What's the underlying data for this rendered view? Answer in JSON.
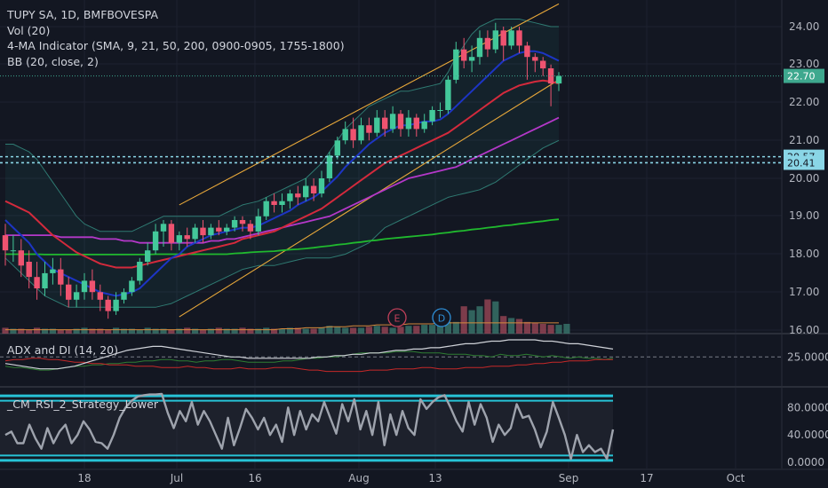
{
  "header": {
    "title": "TUPY SA, 1D, BMFBOVESPA",
    "lines": [
      "Vol (20)",
      "4-MA Indicator (SMA, 9, 21, 50, 200, 0900-0905, 1755-1800)",
      "BB (20, close, 2)"
    ]
  },
  "chart_data": [
    {
      "type": "candlestick",
      "y_ticks": [
        "24.00",
        "23.00",
        "22.00",
        "21.00",
        "20.00",
        "19.00",
        "18.00",
        "17.00",
        "16.00"
      ],
      "x_ticks": [
        "18",
        "Jul",
        "16",
        "Aug",
        "13",
        "Sep",
        "17",
        "Oct"
      ],
      "ylim": [
        15.98,
        24.6
      ],
      "last_price": "22.70",
      "levels": [
        "20.57",
        "20.41"
      ],
      "events": [
        "E",
        "D"
      ],
      "candles": [
        [
          18.5,
          18.1,
          18.8,
          17.7
        ],
        [
          18.1,
          18.1,
          18.5,
          17.8
        ],
        [
          18.1,
          17.7,
          18.4,
          17.4
        ],
        [
          17.8,
          17.4,
          18.1,
          17.1
        ],
        [
          17.4,
          17.1,
          17.8,
          16.8
        ],
        [
          17.1,
          17.5,
          17.8,
          16.9
        ],
        [
          17.5,
          17.6,
          17.9,
          17.2
        ],
        [
          17.6,
          17.2,
          17.9,
          16.9
        ],
        [
          17.2,
          16.8,
          17.4,
          16.6
        ],
        [
          16.8,
          17.0,
          17.2,
          16.6
        ],
        [
          17.0,
          17.3,
          17.5,
          16.8
        ],
        [
          17.3,
          17.0,
          17.6,
          16.8
        ],
        [
          17.0,
          16.8,
          17.2,
          16.5
        ],
        [
          16.8,
          16.5,
          16.9,
          16.3
        ],
        [
          16.5,
          16.8,
          17.0,
          16.4
        ],
        [
          16.8,
          17.0,
          17.1,
          16.7
        ],
        [
          17.0,
          17.3,
          17.4,
          16.9
        ],
        [
          17.3,
          17.8,
          17.9,
          17.2
        ],
        [
          17.8,
          18.1,
          18.3,
          17.7
        ],
        [
          18.1,
          18.6,
          18.8,
          18.0
        ],
        [
          18.6,
          18.8,
          18.9,
          18.2
        ],
        [
          18.8,
          18.3,
          18.9,
          18.1
        ],
        [
          18.3,
          18.5,
          18.6,
          18.1
        ],
        [
          18.5,
          18.4,
          18.7,
          18.2
        ],
        [
          18.4,
          18.7,
          18.8,
          18.3
        ],
        [
          18.7,
          18.5,
          18.9,
          18.3
        ],
        [
          18.5,
          18.7,
          18.8,
          18.4
        ],
        [
          18.7,
          18.6,
          18.9,
          18.5
        ],
        [
          18.6,
          18.7,
          18.8,
          18.5
        ],
        [
          18.7,
          18.9,
          19.0,
          18.6
        ],
        [
          18.9,
          18.8,
          19.0,
          18.6
        ],
        [
          18.8,
          18.6,
          18.9,
          18.4
        ],
        [
          18.6,
          19.0,
          19.2,
          18.5
        ],
        [
          19.0,
          19.4,
          19.5,
          18.9
        ],
        [
          19.4,
          19.3,
          19.6,
          19.1
        ],
        [
          19.3,
          19.4,
          19.6,
          19.1
        ],
        [
          19.4,
          19.6,
          19.7,
          19.2
        ],
        [
          19.6,
          19.5,
          19.8,
          19.3
        ],
        [
          19.5,
          19.8,
          20.0,
          19.4
        ],
        [
          19.8,
          19.6,
          20.0,
          19.4
        ],
        [
          19.6,
          20.0,
          20.2,
          19.5
        ],
        [
          20.0,
          20.6,
          20.7,
          19.9
        ],
        [
          20.6,
          21.0,
          21.1,
          20.5
        ],
        [
          21.0,
          21.3,
          21.5,
          20.9
        ],
        [
          21.3,
          21.0,
          21.6,
          20.8
        ],
        [
          21.0,
          21.4,
          21.6,
          20.9
        ],
        [
          21.4,
          21.2,
          21.6,
          21.0
        ],
        [
          21.2,
          21.6,
          21.8,
          21.1
        ],
        [
          21.6,
          21.3,
          21.8,
          21.1
        ],
        [
          21.3,
          21.7,
          21.9,
          21.2
        ],
        [
          21.7,
          21.3,
          21.8,
          21.1
        ],
        [
          21.3,
          21.6,
          21.8,
          21.1
        ],
        [
          21.6,
          21.3,
          21.7,
          21.1
        ],
        [
          21.3,
          21.5,
          21.7,
          21.2
        ],
        [
          21.5,
          21.8,
          21.9,
          21.4
        ],
        [
          21.8,
          21.8,
          22.0,
          21.6
        ],
        [
          21.8,
          22.6,
          22.7,
          21.7
        ],
        [
          22.6,
          23.4,
          23.6,
          22.5
        ],
        [
          23.4,
          23.1,
          23.7,
          22.9
        ],
        [
          23.1,
          23.2,
          23.5,
          22.8
        ],
        [
          23.2,
          23.7,
          23.9,
          23.0
        ],
        [
          23.7,
          23.4,
          23.9,
          23.2
        ],
        [
          23.4,
          23.9,
          24.1,
          23.3
        ],
        [
          23.9,
          23.5,
          24.0,
          23.1
        ],
        [
          23.5,
          23.9,
          24.0,
          23.4
        ],
        [
          23.9,
          23.5,
          24.0,
          23.3
        ],
        [
          23.5,
          23.2,
          23.6,
          22.6
        ],
        [
          23.2,
          23.1,
          23.3,
          22.8
        ],
        [
          23.1,
          22.9,
          23.2,
          22.7
        ],
        [
          22.9,
          22.5,
          23.0,
          21.9
        ],
        [
          22.5,
          22.7,
          22.8,
          22.3
        ]
      ],
      "sma9": [
        18.9,
        18.7,
        18.5,
        18.3,
        18.0,
        17.8,
        17.6,
        17.5,
        17.4,
        17.3,
        17.2,
        17.1,
        17.0,
        16.95,
        16.9,
        16.95,
        17.0,
        17.1,
        17.3,
        17.5,
        17.7,
        17.9,
        18.0,
        18.2,
        18.3,
        18.4,
        18.5,
        18.55,
        18.6,
        18.65,
        18.7,
        18.7,
        18.75,
        18.85,
        18.95,
        19.05,
        19.15,
        19.3,
        19.4,
        19.5,
        19.65,
        19.85,
        20.05,
        20.3,
        20.5,
        20.7,
        20.9,
        21.05,
        21.2,
        21.3,
        21.4,
        21.4,
        21.45,
        21.5,
        21.5,
        21.55,
        21.7,
        21.9,
        22.1,
        22.3,
        22.5,
        22.7,
        22.9,
        23.1,
        23.2,
        23.3,
        23.35,
        23.35,
        23.3,
        23.2,
        23.1
      ],
      "sma21": [
        19.4,
        19.3,
        19.2,
        19.1,
        18.9,
        18.7,
        18.5,
        18.35,
        18.2,
        18.05,
        17.95,
        17.85,
        17.75,
        17.7,
        17.65,
        17.65,
        17.65,
        17.7,
        17.75,
        17.8,
        17.85,
        17.9,
        17.95,
        18.0,
        18.05,
        18.1,
        18.15,
        18.2,
        18.25,
        18.3,
        18.4,
        18.45,
        18.5,
        18.55,
        18.6,
        18.7,
        18.8,
        18.9,
        19.0,
        19.1,
        19.2,
        19.35,
        19.5,
        19.65,
        19.8,
        19.95,
        20.1,
        20.25,
        20.4,
        20.5,
        20.6,
        20.7,
        20.8,
        20.9,
        21.0,
        21.1,
        21.2,
        21.35,
        21.5,
        21.65,
        21.8,
        21.95,
        22.1,
        22.25,
        22.35,
        22.45,
        22.5,
        22.55,
        22.58,
        22.55,
        22.5
      ],
      "sma50": [
        18.5,
        18.5,
        18.5,
        18.5,
        18.5,
        18.5,
        18.5,
        18.45,
        18.45,
        18.45,
        18.45,
        18.45,
        18.4,
        18.4,
        18.4,
        18.35,
        18.35,
        18.3,
        18.3,
        18.3,
        18.3,
        18.3,
        18.3,
        18.3,
        18.3,
        18.3,
        18.35,
        18.35,
        18.4,
        18.4,
        18.45,
        18.5,
        18.55,
        18.6,
        18.65,
        18.7,
        18.75,
        18.8,
        18.85,
        18.9,
        18.95,
        19.0,
        19.1,
        19.2,
        19.3,
        19.4,
        19.5,
        19.6,
        19.7,
        19.8,
        19.9,
        20.0,
        20.05,
        20.1,
        20.15,
        20.2,
        20.25,
        20.3,
        20.4,
        20.5,
        20.6,
        20.7,
        20.8,
        20.9,
        21.0,
        21.1,
        21.2,
        21.3,
        21.4,
        21.5,
        21.6
      ],
      "sma200": [
        18.0,
        18.0,
        18.0,
        18.0,
        18.0,
        17.99,
        17.99,
        17.99,
        17.99,
        17.99,
        17.99,
        17.99,
        17.99,
        17.99,
        17.99,
        17.99,
        17.99,
        17.99,
        17.99,
        18.0,
        18.0,
        18.0,
        18.0,
        18.0,
        18.0,
        18.0,
        18.0,
        18.0,
        18.0,
        18.02,
        18.03,
        18.05,
        18.06,
        18.07,
        18.08,
        18.1,
        18.12,
        18.13,
        18.15,
        18.17,
        18.2,
        18.22,
        18.25,
        18.27,
        18.3,
        18.32,
        18.35,
        18.37,
        18.4,
        18.42,
        18.44,
        18.46,
        18.48,
        18.5,
        18.52,
        18.55,
        18.57,
        18.6,
        18.62,
        18.65,
        18.67,
        18.7,
        18.72,
        18.75,
        18.77,
        18.8,
        18.82,
        18.85,
        18.87,
        18.9,
        18.92
      ],
      "bb_upper": [
        20.9,
        20.9,
        20.8,
        20.7,
        20.5,
        20.2,
        19.9,
        19.6,
        19.3,
        19.0,
        18.8,
        18.7,
        18.6,
        18.6,
        18.6,
        18.6,
        18.6,
        18.7,
        18.8,
        18.9,
        19.0,
        19.0,
        19.0,
        19.0,
        19.0,
        19.0,
        19.0,
        19.0,
        19.1,
        19.2,
        19.3,
        19.35,
        19.4,
        19.5,
        19.6,
        19.7,
        19.8,
        19.9,
        20.0,
        20.2,
        20.4,
        20.7,
        21.0,
        21.3,
        21.5,
        21.7,
        21.9,
        22.0,
        22.1,
        22.2,
        22.3,
        22.3,
        22.35,
        22.4,
        22.45,
        22.5,
        22.8,
        23.2,
        23.5,
        23.8,
        24.0,
        24.1,
        24.2,
        24.2,
        24.2,
        24.2,
        24.15,
        24.1,
        24.05,
        24.0,
        24.0
      ],
      "bb_lower": [
        17.9,
        17.7,
        17.5,
        17.3,
        17.1,
        16.9,
        16.8,
        16.7,
        16.6,
        16.6,
        16.6,
        16.6,
        16.6,
        16.6,
        16.6,
        16.6,
        16.6,
        16.6,
        16.6,
        16.6,
        16.65,
        16.7,
        16.8,
        16.9,
        17.0,
        17.1,
        17.2,
        17.3,
        17.4,
        17.5,
        17.6,
        17.65,
        17.7,
        17.7,
        17.7,
        17.75,
        17.8,
        17.85,
        17.9,
        17.9,
        17.9,
        17.9,
        17.95,
        18.0,
        18.1,
        18.2,
        18.3,
        18.5,
        18.7,
        18.8,
        18.9,
        19.0,
        19.1,
        19.2,
        19.3,
        19.4,
        19.5,
        19.55,
        19.6,
        19.65,
        19.7,
        19.8,
        19.9,
        20.05,
        20.2,
        20.35,
        20.5,
        20.65,
        20.8,
        20.9,
        21.0
      ],
      "channel": {
        "upper": [
          [
            22,
            19.3
          ],
          [
            70,
            24.6
          ]
        ],
        "lower": [
          [
            22,
            16.35
          ],
          [
            70,
            22.6
          ]
        ]
      }
    },
    {
      "type": "bar",
      "title": "Vol (20)",
      "values": [
        0.06,
        0.05,
        0.05,
        0.04,
        0.06,
        0.05,
        0.05,
        0.04,
        0.04,
        0.05,
        0.06,
        0.05,
        0.05,
        0.04,
        0.06,
        0.05,
        0.05,
        0.04,
        0.06,
        0.05,
        0.05,
        0.04,
        0.05,
        0.06,
        0.05,
        0.04,
        0.05,
        0.06,
        0.05,
        0.05,
        0.06,
        0.05,
        0.05,
        0.06,
        0.05,
        0.05,
        0.06,
        0.06,
        0.05,
        0.05,
        0.06,
        0.08,
        0.07,
        0.06,
        0.06,
        0.06,
        0.07,
        0.08,
        0.07,
        0.06,
        0.07,
        0.08,
        0.08,
        0.09,
        0.09,
        0.11,
        0.12,
        0.12,
        0.28,
        0.24,
        0.28,
        0.35,
        0.33,
        0.18,
        0.16,
        0.15,
        0.12,
        0.11,
        0.1,
        0.09,
        0.09,
        0.1
      ],
      "ma": [
        0.04,
        0.04,
        0.04,
        0.04,
        0.04,
        0.04,
        0.04,
        0.04,
        0.04,
        0.04,
        0.04,
        0.04,
        0.04,
        0.04,
        0.04,
        0.04,
        0.04,
        0.04,
        0.04,
        0.04,
        0.04,
        0.04,
        0.04,
        0.04,
        0.04,
        0.04,
        0.04,
        0.04,
        0.04,
        0.04,
        0.04,
        0.04,
        0.04,
        0.04,
        0.04,
        0.05,
        0.05,
        0.05,
        0.06,
        0.06,
        0.06,
        0.07,
        0.07,
        0.07,
        0.08,
        0.08,
        0.08,
        0.09,
        0.09,
        0.09,
        0.09,
        0.1,
        0.1,
        0.1,
        0.1,
        0.11,
        0.11,
        0.11,
        0.11,
        0.11,
        0.11,
        0.11,
        0.11,
        0.11,
        0.11,
        0.11,
        0.11,
        0.11,
        0.11,
        0.11,
        0.11
      ]
    },
    {
      "type": "line",
      "title": "ADX and DI (14, 20)",
      "y_ticks": [
        "25.0000"
      ],
      "ylim": [
        5,
        40
      ],
      "adx": [
        20,
        19,
        18,
        17,
        16,
        16,
        16,
        17,
        18,
        20,
        22,
        24,
        26,
        28,
        30,
        31,
        32,
        33,
        33,
        32,
        31,
        30,
        29,
        28,
        27,
        26,
        25,
        25,
        24,
        24,
        24,
        24,
        24,
        24,
        24,
        24,
        25,
        25,
        26,
        26,
        27,
        27,
        28,
        28,
        29,
        30,
        30,
        31,
        31,
        32,
        32,
        33,
        34,
        35,
        35,
        36,
        37,
        37,
        38,
        38,
        38,
        38,
        37,
        37,
        36,
        35,
        35,
        34,
        33,
        32,
        31
      ],
      "di_plus": [
        18,
        17,
        17,
        16,
        15,
        15,
        16,
        17,
        18,
        18,
        19,
        19,
        20,
        20,
        21,
        21,
        22,
        22,
        23,
        23,
        22,
        22,
        21,
        22,
        22,
        23,
        23,
        22,
        21,
        21,
        21,
        21,
        22,
        22,
        23,
        24,
        24,
        25,
        25,
        26,
        27,
        28,
        28,
        28,
        28,
        29,
        29,
        29,
        28,
        28,
        28,
        27,
        27,
        27,
        26,
        26,
        25,
        27,
        26,
        26,
        27,
        26,
        25,
        26,
        25,
        24,
        25,
        24,
        24,
        23,
        24
      ],
      "di_minus": [
        22,
        23,
        23,
        24,
        24,
        23,
        23,
        22,
        21,
        21,
        20,
        20,
        19,
        19,
        19,
        18,
        18,
        18,
        17,
        17,
        17,
        18,
        17,
        17,
        16,
        16,
        16,
        17,
        16,
        16,
        16,
        17,
        17,
        17,
        16,
        15,
        15,
        14,
        14,
        14,
        14,
        14,
        15,
        15,
        15,
        16,
        16,
        16,
        17,
        17,
        16,
        16,
        16,
        17,
        17,
        17,
        18,
        18,
        18,
        19,
        19,
        20,
        20,
        21,
        21,
        22,
        22,
        22,
        23,
        23,
        23
      ]
    },
    {
      "type": "line",
      "title": "_CM_RSI_2_Strategy_Lower",
      "y_ticks": [
        "80.0000",
        "40.0000",
        "0.0000"
      ],
      "ylim": [
        -5,
        105
      ],
      "levels": [
        90,
        10
      ],
      "rsi": [
        40,
        45,
        28,
        28,
        55,
        35,
        20,
        50,
        28,
        45,
        55,
        28,
        40,
        60,
        48,
        30,
        28,
        20,
        40,
        65,
        80,
        90,
        96,
        98,
        99,
        99,
        100,
        72,
        50,
        75,
        60,
        88,
        55,
        75,
        60,
        40,
        20,
        65,
        25,
        50,
        78,
        65,
        48,
        65,
        40,
        55,
        30,
        80,
        40,
        75,
        48,
        70,
        60,
        88,
        65,
        42,
        85,
        60,
        92,
        48,
        75,
        40,
        88,
        25,
        70,
        40,
        75,
        50,
        40,
        92,
        78,
        88,
        95,
        98,
        80,
        60,
        45,
        88,
        55,
        85,
        65,
        30,
        55,
        40,
        50,
        85,
        65,
        68,
        48,
        22,
        45,
        88,
        65,
        40,
        5,
        40,
        15,
        25,
        15,
        20,
        5,
        48
      ]
    }
  ]
}
